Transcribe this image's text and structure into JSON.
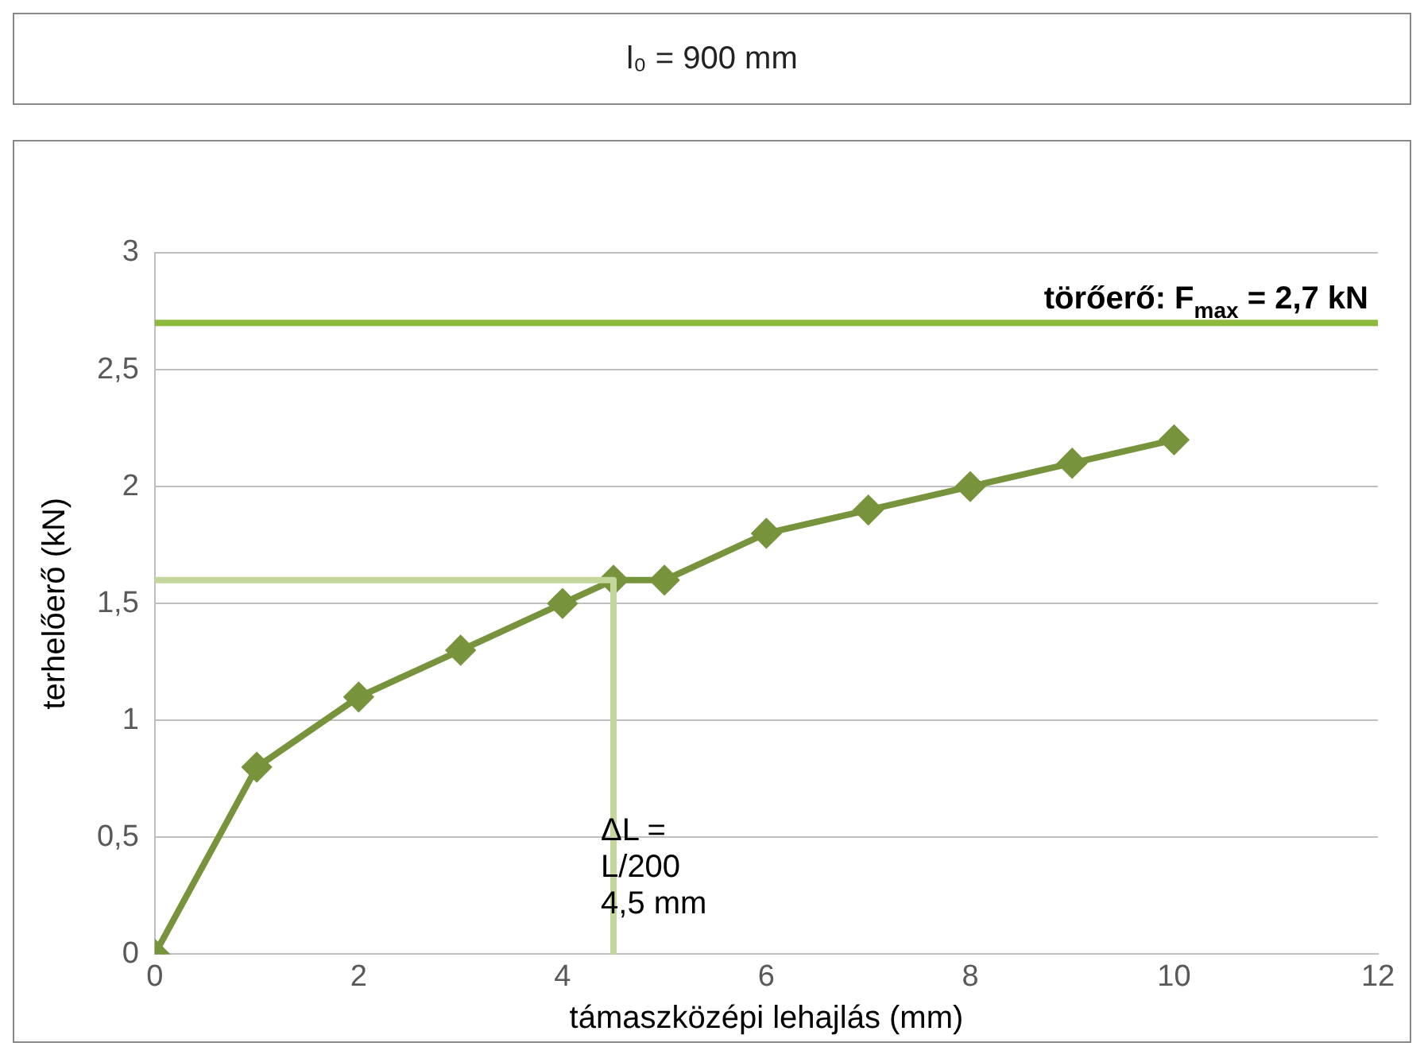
{
  "chart_data": {
    "type": "line",
    "title": "l₀ = 900 mm",
    "xlabel": "támaszközépi lehajlás (mm)",
    "ylabel": "terhelőerő (kN)",
    "xlim": [
      0,
      12
    ],
    "xticks": [
      0,
      2,
      4,
      6,
      8,
      10,
      12
    ],
    "ylim": [
      0,
      3
    ],
    "yticks": [
      0,
      {
        "value": 0.5,
        "label": "0,5"
      },
      1,
      {
        "value": 1.5,
        "label": "1,5"
      },
      2,
      {
        "value": 2.5,
        "label": "2,5"
      },
      3
    ],
    "grid": "y",
    "legend": false,
    "marker": "diamond",
    "line_style": "solid",
    "series": [
      {
        "type": "line",
        "color": "#77933c",
        "x": [
          0,
          1,
          2,
          3,
          4,
          4.5,
          5,
          6,
          7,
          8,
          9,
          10
        ],
        "values": [
          0,
          0.8,
          1.1,
          1.3,
          1.5,
          1.6,
          1.6,
          1.8,
          1.9,
          2.0,
          2.1,
          2.2
        ]
      },
      {
        "type": "line",
        "color": "#c3d69b",
        "x": [
          0,
          4.5,
          4.5
        ],
        "values": [
          1.6,
          1.6,
          0
        ],
        "marker": "none"
      }
    ],
    "ref_lines": [
      {
        "axis": "y",
        "value": 2.7,
        "label": "törőerő: F$_{max}$ = 2,7 kN",
        "color": "#8db93e"
      }
    ],
    "annotations": [
      {
        "text": "ΔL =\nL/200\n4,5 mm",
        "x": 4.5,
        "y": 0.37
      }
    ]
  }
}
